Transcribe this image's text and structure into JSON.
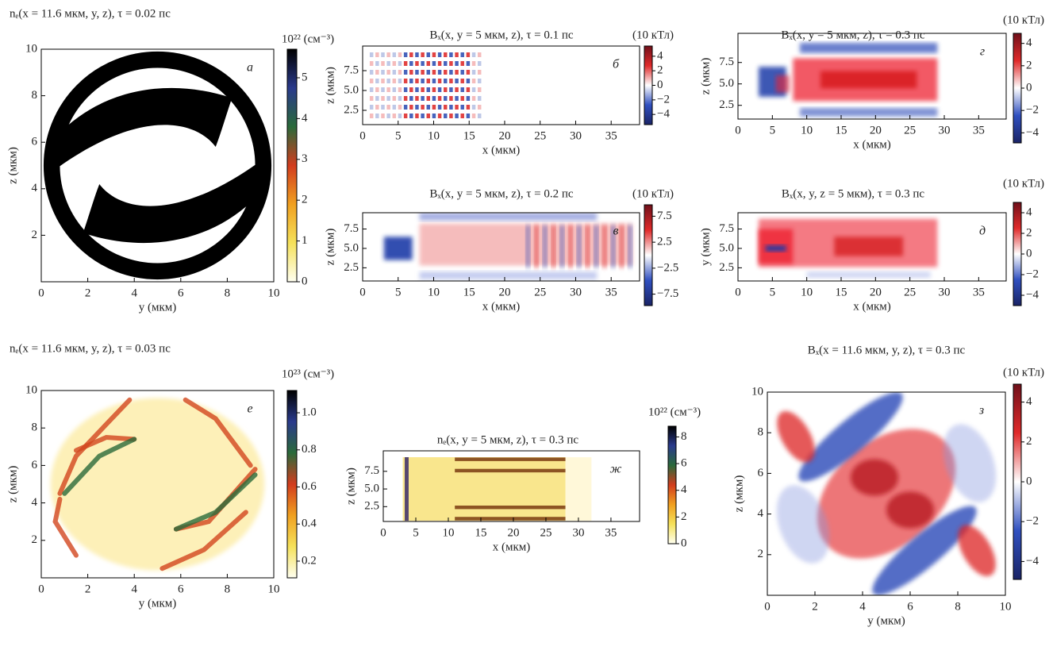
{
  "chart_data": [
    {
      "type": "heatmap",
      "panel": "а",
      "title": "nₑ(x = 11.6 мкм, y, z), τ = 0.02 пс",
      "xlabel": "y (мкм)",
      "ylabel": "z (мкм)",
      "xlim": [
        0,
        10
      ],
      "ylim": [
        0,
        10
      ],
      "xticks": [
        0,
        2,
        4,
        6,
        8,
        10
      ],
      "yticks": [
        2,
        4,
        6,
        8,
        10
      ],
      "colorbar": {
        "label": "10²² (см⁻³)",
        "lim": [
          0,
          5.7
        ],
        "ticks": [
          0,
          1,
          2,
          3,
          4,
          5
        ],
        "colors": [
          "#fffff0",
          "#f5e15a",
          "#f0a020",
          "#d23c1e",
          "#2a6a3a",
          "#2a3a8c",
          "#000000"
        ]
      }
    },
    {
      "type": "heatmap",
      "panel": "б",
      "title": "Bₓ(x, y = 5 мкм, z), τ = 0.1 пс",
      "xlabel": "x (мкм)",
      "ylabel": "z (мкм)",
      "xlim": [
        0,
        39
      ],
      "ylim": [
        0.7,
        10.6
      ],
      "xticks": [
        0,
        5,
        10,
        15,
        20,
        25,
        30,
        35
      ],
      "yticks": [
        2.5,
        {
          "value": 5,
          "label": "5.0"
        },
        7.5
      ],
      "colorbar": {
        "label": "(10 кТл)",
        "lim": [
          -5.4,
          5.4
        ],
        "ticks": [
          {
            "value": -4,
            "label": "−4"
          },
          {
            "value": -2,
            "label": "−2"
          },
          0,
          2,
          4
        ],
        "colors": [
          "#1a2466",
          "#3050c0",
          "#ffffff",
          "#e02a2a",
          "#70101a"
        ]
      }
    },
    {
      "type": "heatmap",
      "panel": "г",
      "title": "Bₓ(x, y = 5 мкм, z), τ = 0.3 пс",
      "xlabel": "x (мкм)",
      "ylabel": "z (мкм)",
      "xlim": [
        0,
        39
      ],
      "ylim": [
        0.9,
        10.9
      ],
      "xticks": [
        0,
        5,
        10,
        15,
        20,
        25,
        30,
        35
      ],
      "yticks": [
        2.5,
        {
          "value": 5,
          "label": "5.0"
        },
        7.5
      ],
      "colorbar": {
        "label": "(10 кТл)",
        "lim": [
          -4.9,
          4.9
        ],
        "ticks": [
          {
            "value": -4,
            "label": "−4"
          },
          {
            "value": -2,
            "label": "−2"
          },
          0,
          2,
          4
        ],
        "colors": [
          "#1a2466",
          "#3050c0",
          "#ffffff",
          "#e02a2a",
          "#70101a"
        ]
      }
    },
    {
      "type": "heatmap",
      "panel": "в",
      "title": "Bₓ(x, y = 5 мкм, z), τ = 0.2 пс",
      "xlabel": "x (мкм)",
      "ylabel": "z (мкм)",
      "xlim": [
        0,
        39
      ],
      "ylim": [
        0.8,
        9.6
      ],
      "xticks": [
        0,
        5,
        10,
        15,
        20,
        25,
        30,
        35
      ],
      "yticks": [
        2.5,
        {
          "value": 5,
          "label": "5.0"
        },
        7.5
      ],
      "colorbar": {
        "label": "(10 кТл)",
        "lim": [
          -9.7,
          9.7
        ],
        "ticks": [
          {
            "value": -7.5,
            "label": "−7.5"
          },
          {
            "value": -2.5,
            "label": "−2.5"
          },
          2.5,
          7.5
        ],
        "colors": [
          "#1a2466",
          "#3050c0",
          "#ffffff",
          "#e02a2a",
          "#70101a"
        ]
      }
    },
    {
      "type": "heatmap",
      "panel": "д",
      "title": "Bₓ(x, y, z  = 5 мкм), τ = 0.3 пс",
      "xlabel": "x (мкм)",
      "ylabel": "y (мкм)",
      "xlim": [
        0,
        39
      ],
      "ylim": [
        0.8,
        9.6
      ],
      "xticks": [
        0,
        5,
        10,
        15,
        20,
        25,
        30,
        35
      ],
      "yticks": [
        2.5,
        {
          "value": 5,
          "label": "5.0"
        },
        7.5
      ],
      "colorbar": {
        "label": "(10 кТл)",
        "lim": [
          -5,
          5
        ],
        "ticks": [
          {
            "value": -4,
            "label": "−4"
          },
          {
            "value": -2,
            "label": "−2"
          },
          0,
          2,
          4
        ],
        "colors": [
          "#1a2466",
          "#3050c0",
          "#ffffff",
          "#e02a2a",
          "#70101a"
        ]
      }
    },
    {
      "type": "heatmap",
      "panel": "е",
      "title": "nₑ(x = 11.6 мкм, y, z), τ = 0.03 пс",
      "xlabel": "y (мкм)",
      "ylabel": "z (мкм)",
      "xlim": [
        0,
        10
      ],
      "ylim": [
        0,
        10
      ],
      "xticks": [
        0,
        2,
        4,
        6,
        8,
        10
      ],
      "yticks": [
        2,
        4,
        6,
        8,
        10
      ],
      "colorbar": {
        "label": "10²³ (см⁻³)",
        "lim": [
          0.11,
          1.12
        ],
        "ticks": [
          0.2,
          0.4,
          0.6,
          0.8,
          {
            "value": 1,
            "label": "1.0"
          }
        ],
        "colors": [
          "#fffff0",
          "#f5e15a",
          "#f0a020",
          "#d23c1e",
          "#2a6a3a",
          "#2a3a8c",
          "#000000"
        ]
      }
    },
    {
      "type": "heatmap",
      "panel": "ж",
      "title": "nₑ(x, y = 5 мкм, z), τ = 0.3 пс",
      "xlabel": "x (мкм)",
      "ylabel": "z (мкм)",
      "xlim": [
        0,
        39.4
      ],
      "ylim": [
        0.4,
        10.4
      ],
      "xticks": [
        0,
        5,
        10,
        15,
        20,
        25,
        30,
        35
      ],
      "yticks": [
        2.5,
        {
          "value": 5,
          "label": "5.0"
        },
        7.5
      ],
      "colorbar": {
        "label": "10²² (см⁻³)",
        "lim": [
          0,
          8.8
        ],
        "ticks": [
          0,
          2,
          4,
          6,
          8
        ],
        "colors": [
          "#fffff0",
          "#f5e15a",
          "#f0a020",
          "#d23c1e",
          "#2a6a3a",
          "#2a3a8c",
          "#000000"
        ]
      }
    },
    {
      "type": "heatmap",
      "panel": "з",
      "title": "Bₓ(x = 11.6 мкм, y, z), τ = 0.3 пс",
      "xlabel": "y (мкм)",
      "ylabel": "z (мкм)",
      "xlim": [
        0,
        10
      ],
      "ylim": [
        0,
        10
      ],
      "xticks": [
        0,
        2,
        4,
        6,
        8,
        10
      ],
      "yticks": [
        2,
        4,
        6,
        8,
        10
      ],
      "colorbar": {
        "label": "(10 кТл)",
        "lim": [
          -4.9,
          4.9
        ],
        "ticks": [
          {
            "value": -4,
            "label": "−4"
          },
          {
            "value": -2,
            "label": "−2"
          },
          0,
          2,
          4
        ],
        "colors": [
          "#1a2466",
          "#3050c0",
          "#ffffff",
          "#e02a2a",
          "#70101a"
        ]
      }
    }
  ]
}
